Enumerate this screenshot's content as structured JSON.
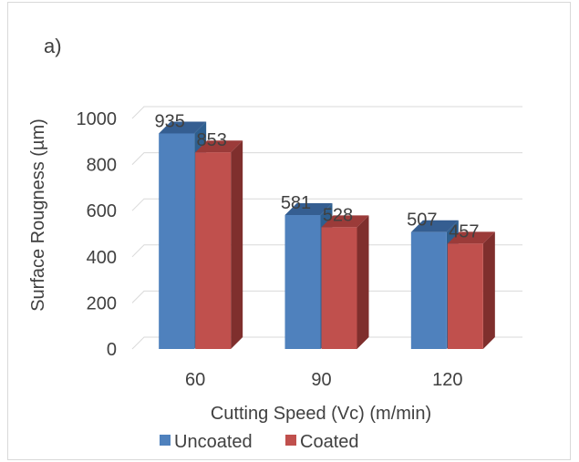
{
  "chart_data": {
    "type": "bar",
    "panel_label": "a)",
    "categories": [
      "60",
      "90",
      "120"
    ],
    "series": [
      {
        "name": "Uncoated",
        "values": [
          935,
          581,
          507
        ],
        "color": "#4f81bd",
        "side_color": "#2e5f8f",
        "top_color": "#355e91"
      },
      {
        "name": "Coated",
        "values": [
          853,
          528,
          457
        ],
        "color": "#c0504d",
        "side_color": "#7f2f2d",
        "top_color": "#9b3b39"
      }
    ],
    "xlabel": "Cutting Speed (Vc) (m/min)",
    "ylabel": "Surface Rougness (µm)",
    "ylim": [
      0,
      1000
    ],
    "yticks": [
      "0",
      "200",
      "400",
      "600",
      "800",
      "1000"
    ],
    "grid": true,
    "legend_position": "bottom"
  }
}
